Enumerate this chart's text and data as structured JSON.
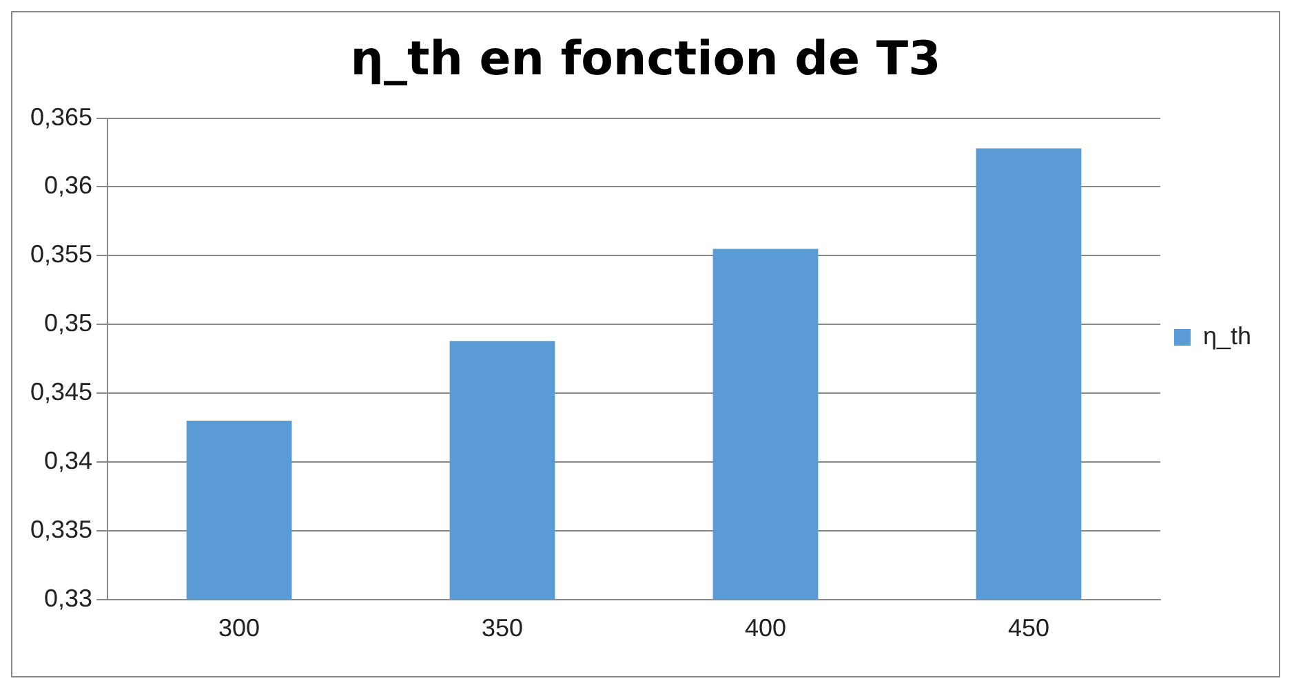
{
  "chart_data": {
    "type": "bar",
    "title": "η_th en fonction de T3",
    "categories": [
      "300",
      "350",
      "400",
      "450"
    ],
    "series": [
      {
        "name": "η_th",
        "color": "#5b9bd5",
        "values": [
          0.343,
          0.3488,
          0.3555,
          0.3628
        ]
      }
    ],
    "ylim": [
      0.33,
      0.365
    ],
    "yticks": [
      {
        "value": 0.33,
        "label": "0,33"
      },
      {
        "value": 0.335,
        "label": "0,335"
      },
      {
        "value": 0.34,
        "label": "0,34"
      },
      {
        "value": 0.345,
        "label": "0,345"
      },
      {
        "value": 0.35,
        "label": "0,35"
      },
      {
        "value": 0.355,
        "label": "0,355"
      },
      {
        "value": 0.36,
        "label": "0,36"
      },
      {
        "value": 0.365,
        "label": "0,365"
      }
    ],
    "grid": "y",
    "legend": "right"
  }
}
